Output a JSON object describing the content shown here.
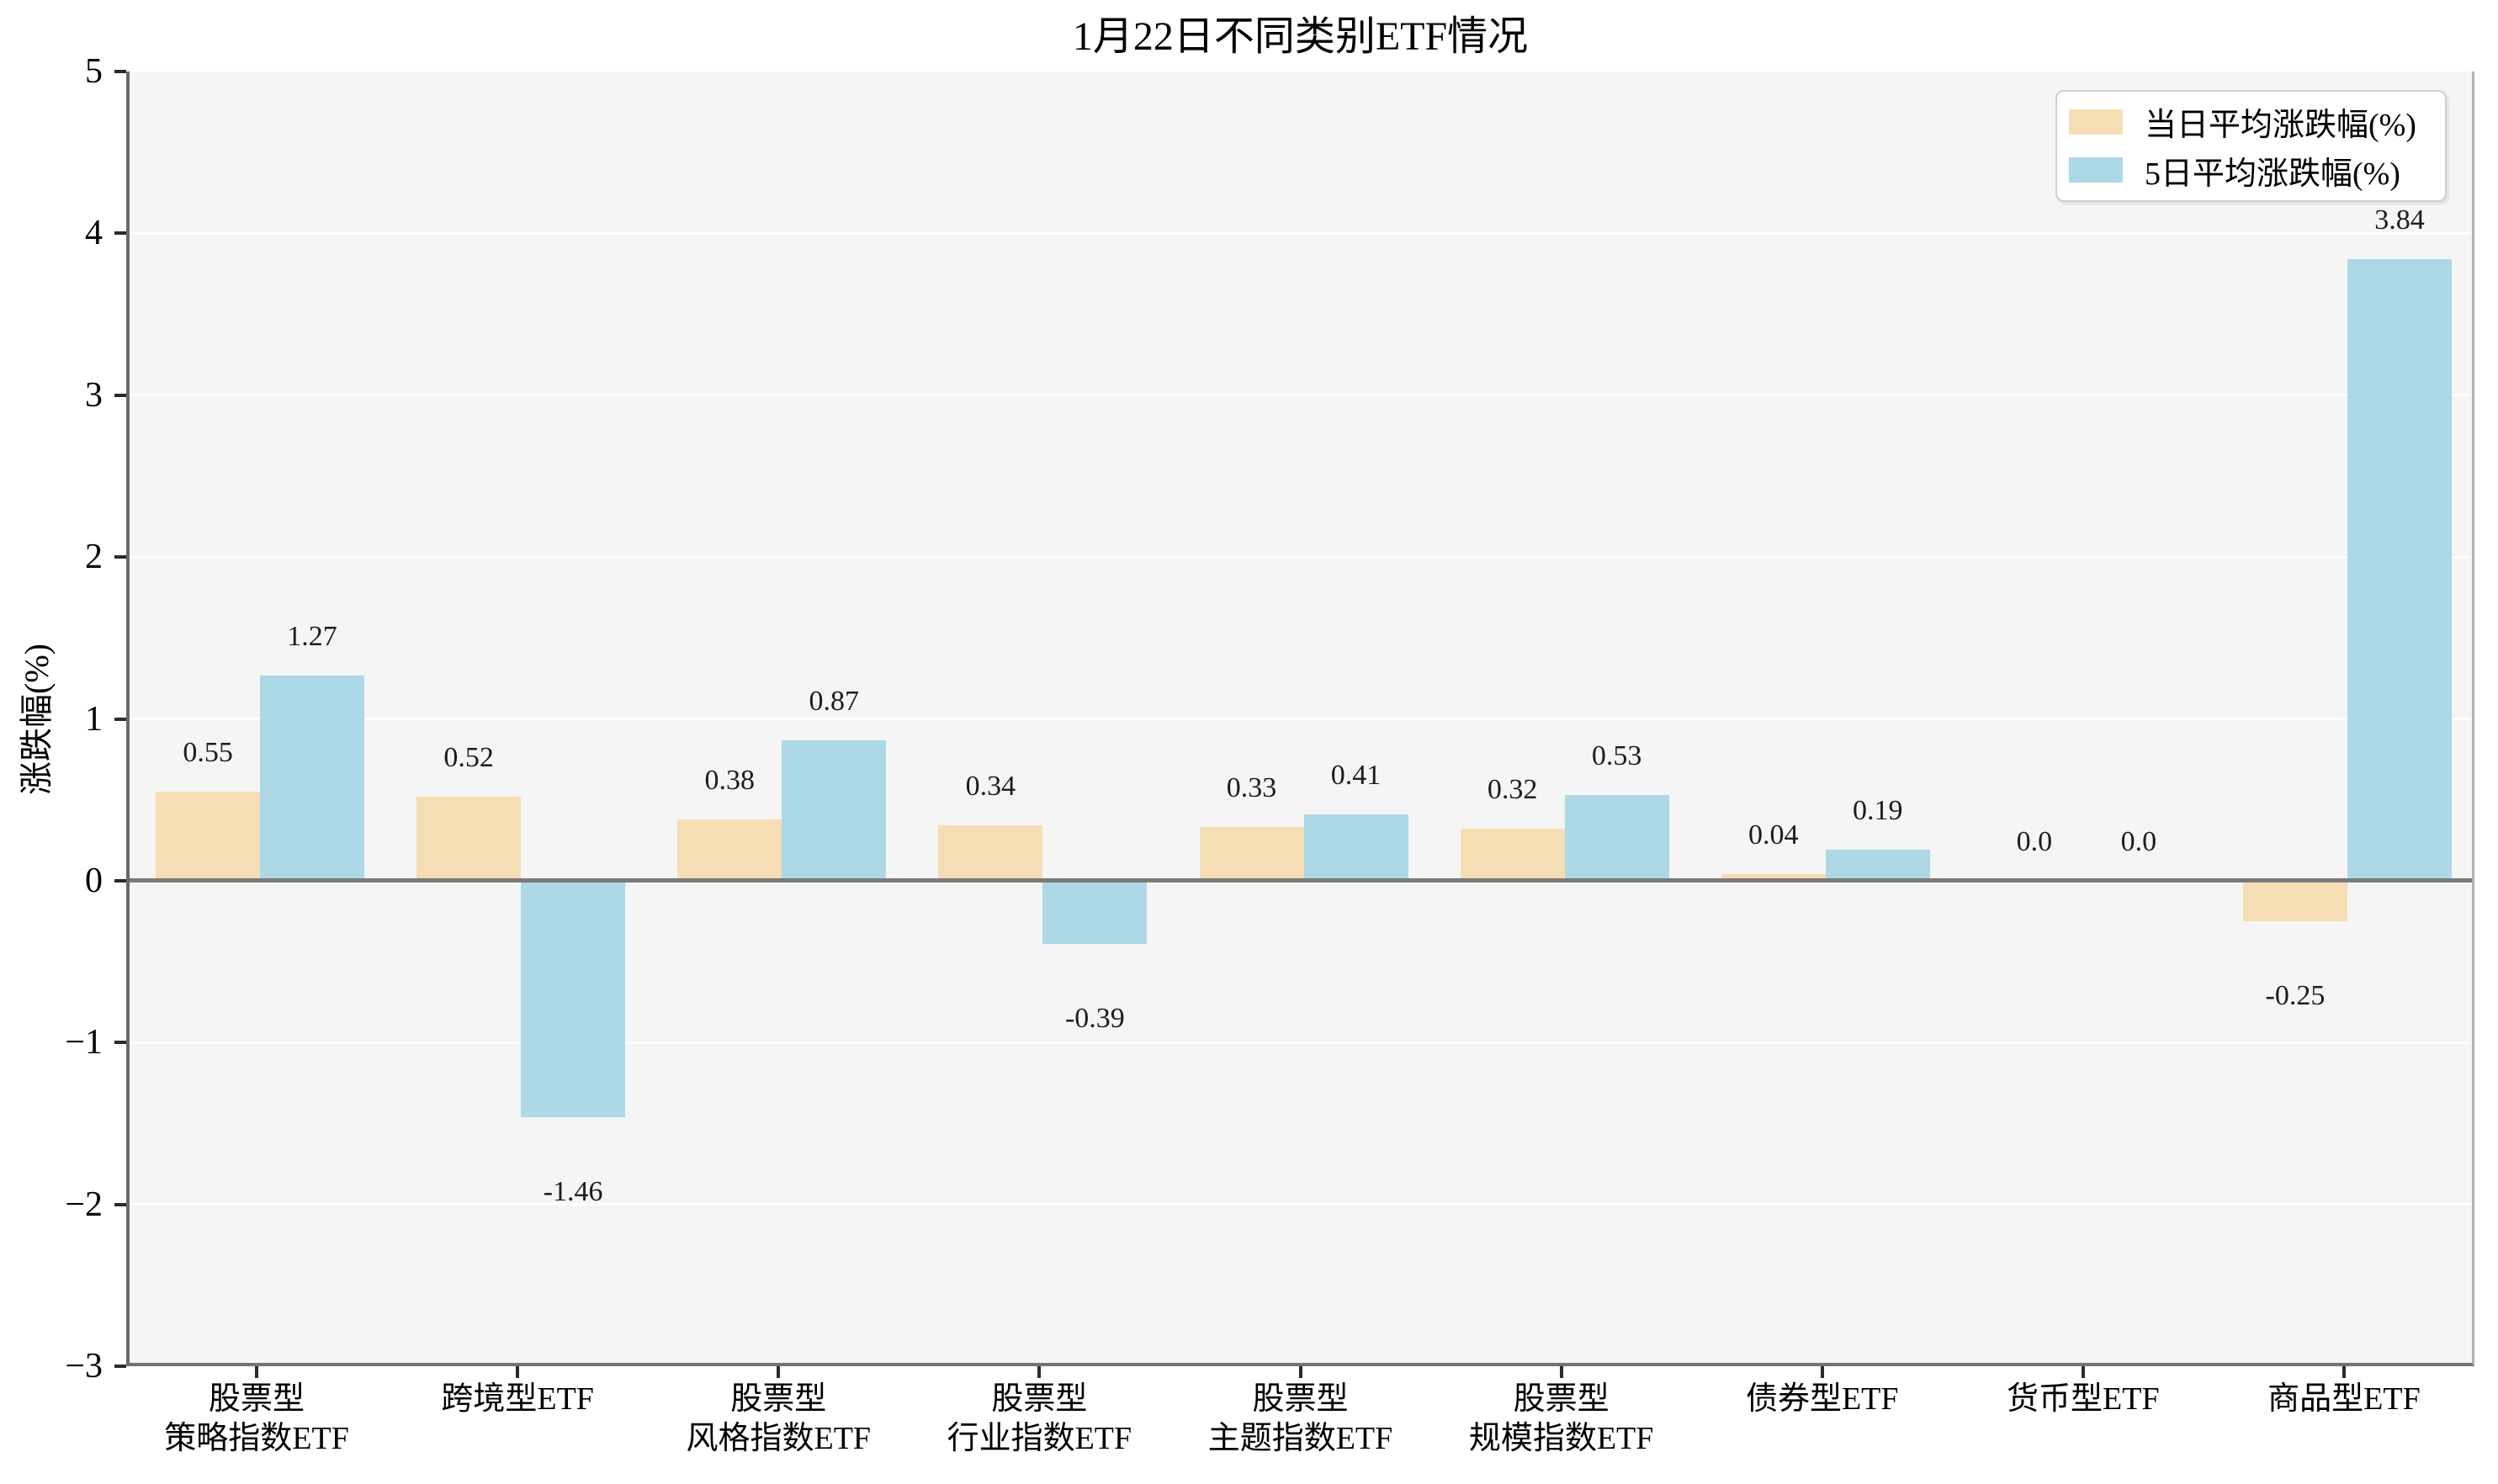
{
  "chart_data": {
    "type": "bar",
    "title": "1月22日不同类别ETF情况",
    "ylabel": "涨跌幅(%)",
    "ylim": [
      -3,
      5
    ],
    "yticks": [
      5,
      4,
      3,
      2,
      1,
      0,
      -1,
      -2,
      -3
    ],
    "grid": "horizontal white gridlines on light gray panel",
    "legend_position": "upper right",
    "categories": [
      [
        "股票型",
        "策略指数ETF"
      ],
      [
        "跨境型ETF"
      ],
      [
        "股票型",
        "风格指数ETF"
      ],
      [
        "股票型",
        "行业指数ETF"
      ],
      [
        "股票型",
        "主题指数ETF"
      ],
      [
        "股票型",
        "规模指数ETF"
      ],
      [
        "债券型ETF"
      ],
      [
        "货币型ETF"
      ],
      [
        "商品型ETF"
      ]
    ],
    "series": [
      {
        "name": "当日平均涨跌幅(%)",
        "color": "#f5deb3",
        "values": [
          0.55,
          0.52,
          0.38,
          0.34,
          0.33,
          0.32,
          0.04,
          0.0,
          -0.25
        ],
        "labels": [
          "0.55",
          "0.52",
          "0.38",
          "0.34",
          "0.33",
          "0.32",
          "0.04",
          "0.0",
          "-0.25"
        ]
      },
      {
        "name": "5日平均涨跌幅(%)",
        "color": "#add8e6",
        "values": [
          1.27,
          -1.46,
          0.87,
          -0.39,
          0.41,
          0.53,
          0.19,
          0.0,
          3.84
        ],
        "labels": [
          "1.27",
          "-1.46",
          "0.87",
          "-0.39",
          "0.41",
          "0.53",
          "0.19",
          "0.0",
          "3.84"
        ]
      }
    ],
    "colors": {
      "panel_bg": "#f5f5f5",
      "grid": "#ffffff",
      "zero_line": "#7a7a7a",
      "spine": "#696969",
      "tick": "#2b2b2b",
      "value_label": "#1c1c1c"
    }
  }
}
